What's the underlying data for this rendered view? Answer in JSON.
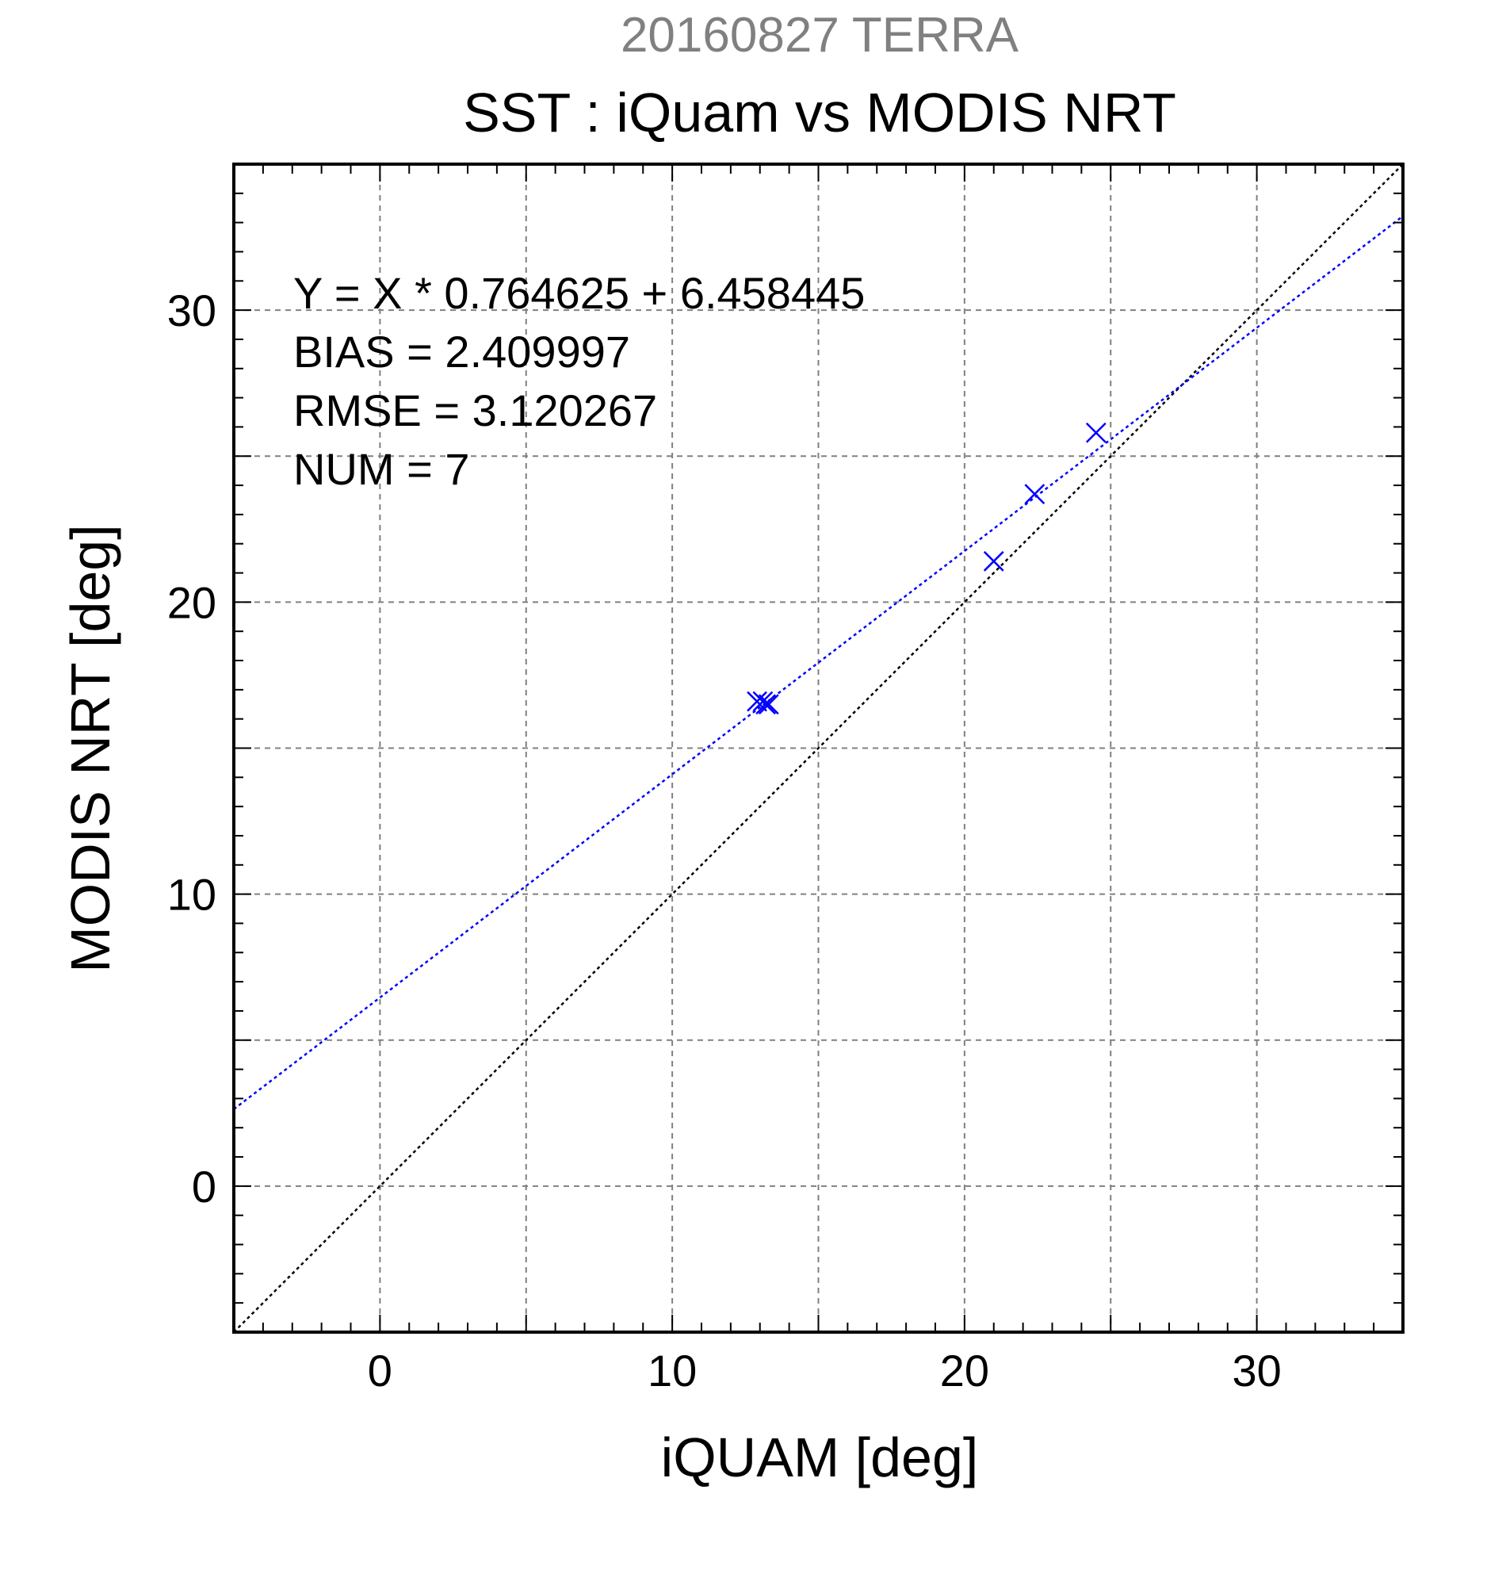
{
  "chart_data": {
    "type": "scatter",
    "supertitle": "20160827 TERRA",
    "title": "SST : iQuam vs MODIS NRT",
    "xlabel": "iQUAM [deg]",
    "ylabel": "MODIS NRT [deg]",
    "xlim": [
      -5,
      35
    ],
    "ylim": [
      -5,
      35
    ],
    "xticks": [
      0,
      10,
      20,
      30
    ],
    "yticks": [
      0,
      10,
      20,
      30
    ],
    "grid": true,
    "grid_step": 5,
    "minor_tick_step": 1,
    "colors": {
      "points": "#0000ff",
      "regression": "#0000ff",
      "identity": "#000000",
      "supertitle": "#808080",
      "grid": "#808080"
    },
    "stats": [
      "Y = X * 0.764625 + 6.458445",
      "BIAS = 2.409997",
      "RMSE = 3.120267",
      "NUM = 7"
    ],
    "regression": {
      "slope": 0.764625,
      "intercept": 6.458445
    },
    "identity_line": {
      "slope": 1,
      "intercept": 0
    },
    "series": [
      {
        "marker": "x",
        "x": [
          12.9,
          13.1,
          13.2,
          13.3,
          21.0,
          22.4,
          24.5
        ],
        "y": [
          16.6,
          16.6,
          16.5,
          16.5,
          21.4,
          23.7,
          25.8
        ]
      }
    ]
  }
}
